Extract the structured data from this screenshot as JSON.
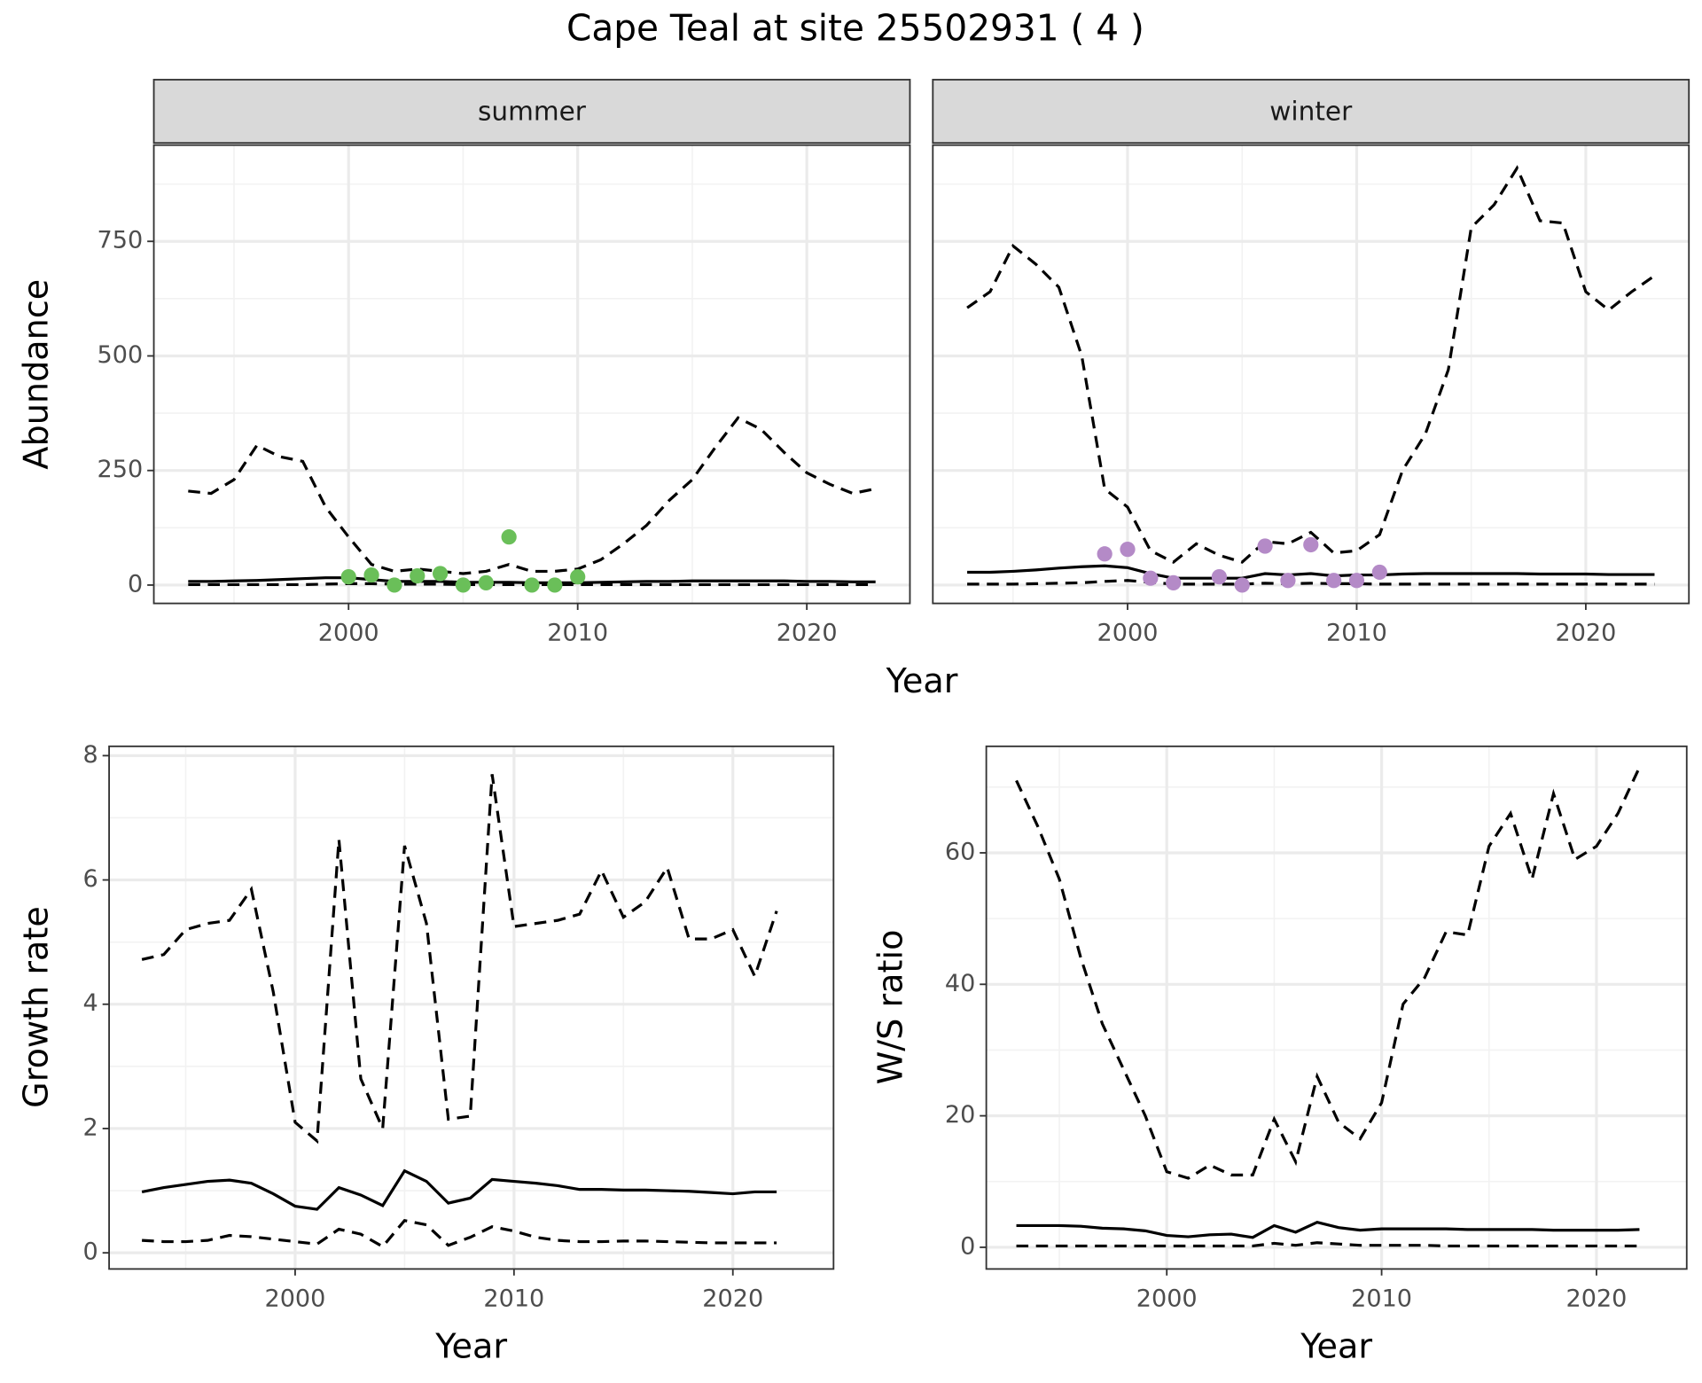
{
  "title": "Cape Teal at site 25502931 ( 4 )",
  "chart_data": [
    {
      "type": "line",
      "strip": "summer",
      "ylabel": "Abundance",
      "xlabel": "Year",
      "x": [
        1993,
        1994,
        1995,
        1996,
        1997,
        1998,
        1999,
        2000,
        2001,
        2002,
        2003,
        2004,
        2005,
        2006,
        2007,
        2008,
        2009,
        2010,
        2011,
        2012,
        2013,
        2014,
        2015,
        2016,
        2017,
        2018,
        2019,
        2020,
        2021,
        2022,
        2023
      ],
      "xlim": [
        1991.5,
        2024.5
      ],
      "ylim": [
        -40,
        960
      ],
      "xticks": [
        2000,
        2010,
        2020
      ],
      "yticks": [
        0,
        250,
        500,
        750
      ],
      "grid": true,
      "series": [
        {
          "color": "#000000",
          "dash": true,
          "values": [
            205,
            200,
            230,
            305,
            280,
            270,
            170,
            105,
            45,
            30,
            35,
            30,
            25,
            30,
            45,
            30,
            30,
            35,
            55,
            90,
            130,
            185,
            230,
            300,
            365,
            340,
            290,
            245,
            220,
            200,
            210
          ]
        },
        {
          "color": "#000000",
          "dash": false,
          "values": [
            8,
            8,
            9,
            10,
            12,
            14,
            16,
            16,
            12,
            8,
            8,
            8,
            6,
            6,
            6,
            5,
            5,
            5,
            6,
            7,
            8,
            8,
            9,
            9,
            9,
            9,
            9,
            8,
            8,
            7,
            7
          ]
        },
        {
          "color": "#000000",
          "dash": true,
          "values": [
            1,
            1,
            1,
            1,
            1,
            1,
            2,
            3,
            3,
            2,
            2,
            2,
            1,
            1,
            1,
            1,
            1,
            1,
            1,
            1,
            1,
            1,
            1,
            1,
            1,
            1,
            1,
            1,
            1,
            1,
            1
          ]
        },
        {
          "type": "scatter",
          "color": "#6abf59",
          "x": [
            2000,
            2001,
            2002,
            2003,
            2004,
            2005,
            2006,
            2007,
            2008,
            2009,
            2010
          ],
          "values": [
            18,
            22,
            0,
            20,
            25,
            0,
            5,
            105,
            0,
            0,
            18
          ]
        }
      ]
    },
    {
      "type": "line",
      "strip": "winter",
      "ytick_labels": false,
      "x": [
        1993,
        1994,
        1995,
        1996,
        1997,
        1998,
        1999,
        2000,
        2001,
        2002,
        2003,
        2004,
        2005,
        2006,
        2007,
        2008,
        2009,
        2010,
        2011,
        2012,
        2013,
        2014,
        2015,
        2016,
        2017,
        2018,
        2019,
        2020,
        2021,
        2022,
        2023
      ],
      "xlim": [
        1991.5,
        2024.5
      ],
      "ylim": [
        -40,
        960
      ],
      "xticks": [
        2000,
        2010,
        2020
      ],
      "yticks": [
        0,
        250,
        500,
        750
      ],
      "grid": true,
      "series": [
        {
          "color": "#000000",
          "dash": true,
          "values": [
            605,
            640,
            740,
            700,
            650,
            500,
            210,
            170,
            75,
            50,
            90,
            65,
            50,
            95,
            90,
            115,
            70,
            75,
            110,
            250,
            330,
            470,
            780,
            830,
            910,
            795,
            790,
            640,
            600,
            640,
            675
          ]
        },
        {
          "color": "#000000",
          "dash": false,
          "values": [
            28,
            28,
            30,
            33,
            37,
            40,
            42,
            38,
            25,
            15,
            15,
            15,
            15,
            25,
            22,
            25,
            20,
            22,
            22,
            24,
            25,
            25,
            25,
            25,
            25,
            24,
            24,
            24,
            23,
            23,
            23
          ]
        },
        {
          "color": "#000000",
          "dash": true,
          "values": [
            2,
            2,
            2,
            3,
            4,
            5,
            8,
            10,
            6,
            2,
            2,
            2,
            2,
            4,
            3,
            4,
            3,
            3,
            2,
            2,
            2,
            2,
            2,
            2,
            2,
            2,
            2,
            2,
            2,
            2,
            2
          ]
        },
        {
          "type": "scatter",
          "color": "#b48ac7",
          "x": [
            1999,
            2000,
            2001,
            2002,
            2004,
            2005,
            2006,
            2007,
            2008,
            2009,
            2010,
            2011
          ],
          "values": [
            68,
            78,
            15,
            5,
            18,
            0,
            85,
            10,
            88,
            10,
            10,
            28
          ]
        }
      ]
    },
    {
      "type": "line",
      "ylabel": "Growth rate",
      "xlabel": "Year",
      "x": [
        1993,
        1994,
        1995,
        1996,
        1997,
        1998,
        1999,
        2000,
        2001,
        2002,
        2003,
        2004,
        2005,
        2006,
        2007,
        2008,
        2009,
        2010,
        2011,
        2012,
        2013,
        2014,
        2015,
        2016,
        2017,
        2018,
        2019,
        2020,
        2021,
        2022
      ],
      "xlim": [
        1991.5,
        2024.6
      ],
      "ylim": [
        -0.26,
        8.15
      ],
      "xticks": [
        2000,
        2010,
        2020
      ],
      "yticks": [
        0,
        2,
        4,
        6,
        8
      ],
      "grid": true,
      "series": [
        {
          "color": "#000000",
          "dash": true,
          "values": [
            4.72,
            4.8,
            5.2,
            5.3,
            5.35,
            5.85,
            4.2,
            2.1,
            1.8,
            6.65,
            2.8,
            2.0,
            6.55,
            5.3,
            2.15,
            2.2,
            7.7,
            5.25,
            5.3,
            5.35,
            5.45,
            6.15,
            5.4,
            5.65,
            6.2,
            5.05,
            5.05,
            5.2,
            4.45,
            5.5
          ]
        },
        {
          "color": "#000000",
          "dash": false,
          "values": [
            0.98,
            1.05,
            1.1,
            1.15,
            1.17,
            1.12,
            0.95,
            0.75,
            0.7,
            1.05,
            0.93,
            0.76,
            1.32,
            1.15,
            0.8,
            0.88,
            1.18,
            1.15,
            1.12,
            1.08,
            1.02,
            1.02,
            1.01,
            1.01,
            1.0,
            0.99,
            0.97,
            0.95,
            0.98,
            0.98
          ]
        },
        {
          "color": "#000000",
          "dash": true,
          "values": [
            0.2,
            0.18,
            0.18,
            0.2,
            0.28,
            0.26,
            0.22,
            0.18,
            0.14,
            0.38,
            0.3,
            0.1,
            0.52,
            0.45,
            0.12,
            0.25,
            0.42,
            0.35,
            0.25,
            0.2,
            0.18,
            0.18,
            0.19,
            0.19,
            0.18,
            0.17,
            0.16,
            0.16,
            0.16,
            0.16
          ]
        }
      ]
    },
    {
      "type": "line",
      "ylabel": "W/S ratio",
      "xlabel": "Year",
      "x": [
        1993,
        1994,
        1995,
        1996,
        1997,
        1998,
        1999,
        2000,
        2001,
        2002,
        2003,
        2004,
        2005,
        2006,
        2007,
        2008,
        2009,
        2010,
        2011,
        2012,
        2013,
        2014,
        2015,
        2016,
        2017,
        2018,
        2019,
        2020,
        2021,
        2022
      ],
      "xlim": [
        1991.6,
        2024.2
      ],
      "ylim": [
        -3.3,
        76.2
      ],
      "xticks": [
        2000,
        2010,
        2020
      ],
      "yticks": [
        0,
        20,
        40,
        60
      ],
      "grid": true,
      "series": [
        {
          "color": "#000000",
          "dash": true,
          "values": [
            71,
            64,
            56,
            44,
            34,
            27,
            20,
            11.5,
            10.5,
            12.5,
            11,
            11,
            19.5,
            13,
            26,
            19,
            16.5,
            22,
            37,
            41,
            48,
            47.5,
            61,
            66,
            56,
            69,
            59,
            61,
            66,
            73
          ]
        },
        {
          "color": "#000000",
          "dash": false,
          "values": [
            3.3,
            3.3,
            3.3,
            3.2,
            2.9,
            2.8,
            2.5,
            1.8,
            1.6,
            1.9,
            2.0,
            1.5,
            3.3,
            2.3,
            3.8,
            3.0,
            2.6,
            2.8,
            2.8,
            2.8,
            2.8,
            2.7,
            2.7,
            2.7,
            2.7,
            2.6,
            2.6,
            2.6,
            2.6,
            2.7
          ]
        },
        {
          "color": "#000000",
          "dash": true,
          "values": [
            0.2,
            0.2,
            0.2,
            0.2,
            0.2,
            0.2,
            0.2,
            0.2,
            0.2,
            0.2,
            0.2,
            0.2,
            0.6,
            0.3,
            0.7,
            0.5,
            0.3,
            0.3,
            0.3,
            0.3,
            0.2,
            0.2,
            0.2,
            0.2,
            0.2,
            0.2,
            0.2,
            0.2,
            0.2,
            0.2
          ]
        }
      ]
    }
  ]
}
